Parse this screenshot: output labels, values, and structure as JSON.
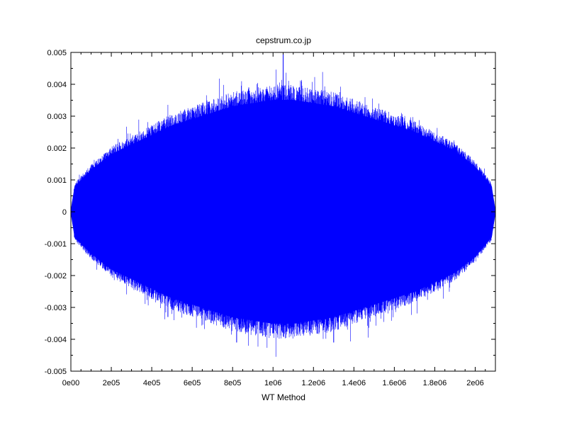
{
  "chart_data": {
    "type": "line",
    "title": "cepstrum.co.jp",
    "xlabel": "WT Method",
    "ylabel": "",
    "xlim": [
      0,
      2100000
    ],
    "ylim": [
      -0.005,
      0.005
    ],
    "grid": false,
    "legend": "none",
    "x_ticks": [
      {
        "value": 0,
        "label": "0e00"
      },
      {
        "value": 200000,
        "label": "2e05"
      },
      {
        "value": 400000,
        "label": "4e05"
      },
      {
        "value": 600000,
        "label": "6e05"
      },
      {
        "value": 800000,
        "label": "8e05"
      },
      {
        "value": 1000000,
        "label": "1e06"
      },
      {
        "value": 1200000,
        "label": "1.2e06"
      },
      {
        "value": 1400000,
        "label": "1.4e06"
      },
      {
        "value": 1600000,
        "label": "1.6e06"
      },
      {
        "value": 1800000,
        "label": "1.8e06"
      },
      {
        "value": 2000000,
        "label": "2e06"
      }
    ],
    "y_ticks": [
      {
        "value": 0.005,
        "label": "0.005"
      },
      {
        "value": 0.004,
        "label": "0.004"
      },
      {
        "value": 0.003,
        "label": "0.003"
      },
      {
        "value": 0.002,
        "label": "0.002"
      },
      {
        "value": 0.001,
        "label": "0.001"
      },
      {
        "value": 0,
        "label": "0"
      },
      {
        "value": -0.001,
        "label": "-0.001"
      },
      {
        "value": -0.002,
        "label": "-0.002"
      },
      {
        "value": -0.003,
        "label": "-0.003"
      },
      {
        "value": -0.004,
        "label": "-0.004"
      },
      {
        "value": -0.005,
        "label": "-0.005"
      }
    ],
    "series": [
      {
        "color": "#0000ff",
        "envelope_upper": [
          [
            0,
            0.0
          ],
          [
            20000,
            0.0008
          ],
          [
            100000,
            0.0013
          ],
          [
            200000,
            0.0018
          ],
          [
            300000,
            0.0021
          ],
          [
            400000,
            0.0024
          ],
          [
            500000,
            0.0027
          ],
          [
            600000,
            0.0029
          ],
          [
            700000,
            0.0031
          ],
          [
            800000,
            0.0033
          ],
          [
            900000,
            0.0034
          ],
          [
            1000000,
            0.0035
          ],
          [
            1050000,
            0.0035
          ],
          [
            1100000,
            0.0035
          ],
          [
            1200000,
            0.0034
          ],
          [
            1300000,
            0.0033
          ],
          [
            1400000,
            0.0031
          ],
          [
            1500000,
            0.0029
          ],
          [
            1600000,
            0.0027
          ],
          [
            1700000,
            0.0025
          ],
          [
            1800000,
            0.0022
          ],
          [
            1900000,
            0.0019
          ],
          [
            2000000,
            0.0014
          ],
          [
            2080000,
            0.0008
          ],
          [
            2100000,
            0.0
          ]
        ],
        "envelope_lower": [
          [
            0,
            0.0
          ],
          [
            20000,
            -0.0008
          ],
          [
            100000,
            -0.0013
          ],
          [
            200000,
            -0.0018
          ],
          [
            300000,
            -0.0021
          ],
          [
            400000,
            -0.0024
          ],
          [
            500000,
            -0.0027
          ],
          [
            600000,
            -0.0029
          ],
          [
            700000,
            -0.0031
          ],
          [
            800000,
            -0.0033
          ],
          [
            900000,
            -0.0034
          ],
          [
            1000000,
            -0.0035
          ],
          [
            1050000,
            -0.0035
          ],
          [
            1100000,
            -0.0035
          ],
          [
            1200000,
            -0.0034
          ],
          [
            1300000,
            -0.0033
          ],
          [
            1400000,
            -0.0031
          ],
          [
            1500000,
            -0.0029
          ],
          [
            1600000,
            -0.0027
          ],
          [
            1700000,
            -0.0025
          ],
          [
            1800000,
            -0.0022
          ],
          [
            1900000,
            -0.0019
          ],
          [
            2000000,
            -0.0014
          ],
          [
            2080000,
            -0.0008
          ],
          [
            2100000,
            0.0
          ]
        ],
        "spikes": [
          [
            1050000,
            0.005
          ],
          [
            1050000,
            -0.0036
          ],
          [
            880000,
            0.0039
          ],
          [
            1120000,
            0.0038
          ],
          [
            600000,
            0.0032
          ],
          [
            1420000,
            0.0033
          ],
          [
            820000,
            -0.0041
          ],
          [
            1300000,
            -0.0041
          ],
          [
            700000,
            -0.0034
          ],
          [
            480000,
            -0.0033
          ],
          [
            1550000,
            -0.0031
          ],
          [
            1000000,
            -0.0038
          ],
          [
            1620000,
            0.003
          ],
          [
            300000,
            0.0022
          ],
          [
            1830000,
            0.002
          ],
          [
            150000,
            0.0012
          ],
          [
            1950000,
            0.0014
          ],
          [
            400000,
            -0.0027
          ],
          [
            1750000,
            -0.0024
          ],
          [
            950000,
            0.0036
          ],
          [
            1180000,
            -0.0037
          ]
        ]
      }
    ]
  }
}
